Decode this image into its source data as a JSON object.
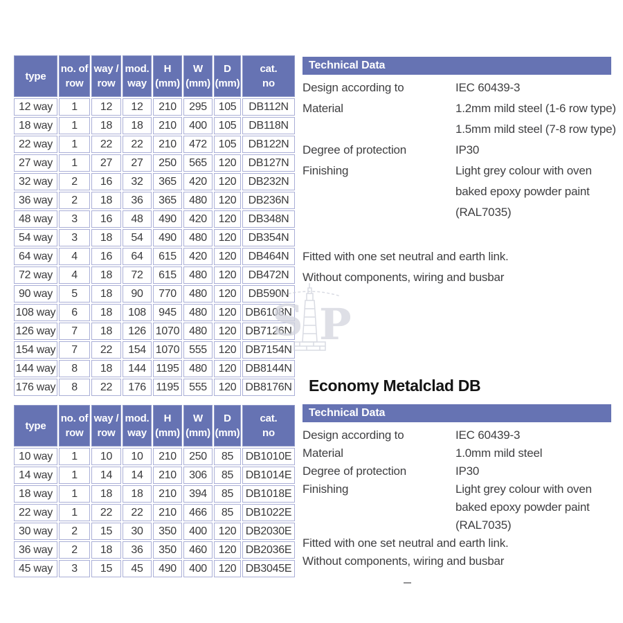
{
  "colors": {
    "header_blue": "#6673b3",
    "grid_purple": "#a9aed6",
    "text_dark": "#3f3f41",
    "watermark_grey": "#d3d5de"
  },
  "table1": {
    "headers": [
      [
        "type",
        ""
      ],
      [
        "no. of",
        "row"
      ],
      [
        "way /",
        "row"
      ],
      [
        "mod.",
        "way"
      ],
      [
        "H",
        "(mm)"
      ],
      [
        "W",
        "(mm)"
      ],
      [
        "D",
        "(mm)"
      ],
      [
        "cat.",
        "no"
      ]
    ],
    "rows": [
      [
        "12 way",
        "1",
        "12",
        "12",
        "210",
        "295",
        "105",
        "DB112N"
      ],
      [
        "18 way",
        "1",
        "18",
        "18",
        "210",
        "400",
        "105",
        "DB118N"
      ],
      [
        "22 way",
        "1",
        "22",
        "22",
        "210",
        "472",
        "105",
        "DB122N"
      ],
      [
        "27 way",
        "1",
        "27",
        "27",
        "250",
        "565",
        "120",
        "DB127N"
      ],
      [
        "32 way",
        "2",
        "16",
        "32",
        "365",
        "420",
        "120",
        "DB232N"
      ],
      [
        "36 way",
        "2",
        "18",
        "36",
        "365",
        "480",
        "120",
        "DB236N"
      ],
      [
        "48 way",
        "3",
        "16",
        "48",
        "490",
        "420",
        "120",
        "DB348N"
      ],
      [
        "54 way",
        "3",
        "18",
        "54",
        "490",
        "480",
        "120",
        "DB354N"
      ],
      [
        "64 way",
        "4",
        "16",
        "64",
        "615",
        "420",
        "120",
        "DB464N"
      ],
      [
        "72 way",
        "4",
        "18",
        "72",
        "615",
        "480",
        "120",
        "DB472N"
      ],
      [
        "90 way",
        "5",
        "18",
        "90",
        "770",
        "480",
        "120",
        "DB590N"
      ],
      [
        "108 way",
        "6",
        "18",
        "108",
        "945",
        "480",
        "120",
        "DB6108N"
      ],
      [
        "126 way",
        "7",
        "18",
        "126",
        "1070",
        "480",
        "120",
        "DB7126N"
      ],
      [
        "154 way",
        "7",
        "22",
        "154",
        "1070",
        "555",
        "120",
        "DB7154N"
      ],
      [
        "144 way",
        "8",
        "18",
        "144",
        "1195",
        "480",
        "120",
        "DB8144N"
      ],
      [
        "176 way",
        "8",
        "22",
        "176",
        "1195",
        "555",
        "120",
        "DB8176N"
      ]
    ]
  },
  "tech1": {
    "title": "Technical Data",
    "specs": [
      {
        "label": "Design according to",
        "values": [
          "IEC 60439-3"
        ]
      },
      {
        "label": "Material",
        "values": [
          "1.2mm mild steel (1-6 row type)",
          "1.5mm mild steel (7-8 row type)"
        ]
      },
      {
        "label": "Degree of protection",
        "values": [
          "IP30"
        ]
      },
      {
        "label": "Finishing",
        "values": [
          "Light grey colour with oven",
          "baked epoxy powder paint",
          "(RAL7035)"
        ]
      }
    ],
    "notes": [
      "Fitted with one set neutral and earth link.",
      "Without components, wiring and busbar"
    ]
  },
  "section2_title": "Economy Metalclad DB",
  "table2": {
    "headers": [
      [
        "type",
        ""
      ],
      [
        "no. of",
        "row"
      ],
      [
        "way /",
        "row"
      ],
      [
        "mod.",
        "way"
      ],
      [
        "H",
        "(mm)"
      ],
      [
        "W",
        "(mm)"
      ],
      [
        "D",
        "(mm)"
      ],
      [
        "cat.",
        "no"
      ]
    ],
    "rows": [
      [
        "10 way",
        "1",
        "10",
        "10",
        "210",
        "250",
        "85",
        "DB1010E"
      ],
      [
        "14 way",
        "1",
        "14",
        "14",
        "210",
        "306",
        "85",
        "DB1014E"
      ],
      [
        "18 way",
        "1",
        "18",
        "18",
        "210",
        "394",
        "85",
        "DB1018E"
      ],
      [
        "22 way",
        "1",
        "22",
        "22",
        "210",
        "466",
        "85",
        "DB1022E"
      ],
      [
        "30 way",
        "2",
        "15",
        "30",
        "350",
        "400",
        "120",
        "DB2030E"
      ],
      [
        "36 way",
        "2",
        "18",
        "36",
        "350",
        "460",
        "120",
        "DB2036E"
      ],
      [
        "45 way",
        "3",
        "15",
        "45",
        "490",
        "400",
        "120",
        "DB3045E"
      ]
    ]
  },
  "tech2": {
    "title": "Technical Data",
    "specs": [
      {
        "label": "Design according to",
        "values": [
          "IEC 60439-3"
        ]
      },
      {
        "label": "Material",
        "values": [
          "1.0mm mild steel"
        ]
      },
      {
        "label": "Degree of protection",
        "values": [
          "IP30"
        ]
      },
      {
        "label": "Finishing",
        "values": [
          "Light grey colour with oven",
          "baked epoxy powder paint",
          "(RAL7035)"
        ]
      }
    ],
    "notes": [
      "Fitted with one set neutral and earth link.",
      "Without components, wiring and busbar"
    ]
  },
  "watermark": {
    "letter_s": "S",
    "letter_p": "P"
  }
}
